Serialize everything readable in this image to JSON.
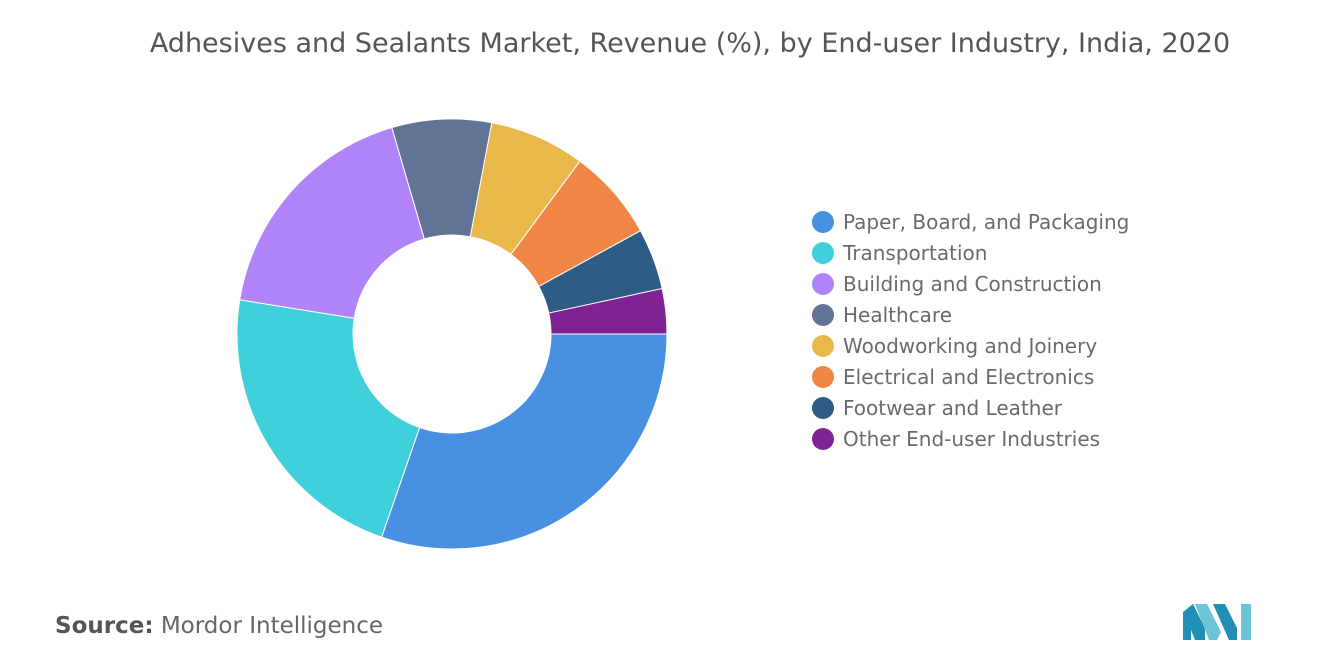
{
  "chart_data": {
    "type": "pie",
    "variant": "donut",
    "title": "Adhesives and Sealants Market, Revenue (%), by End-user Industry, India, 2020",
    "legend_position": "right",
    "series": [
      {
        "name": "Paper, Board, and Packaging",
        "value": 30.4,
        "color": "#4a90e2"
      },
      {
        "name": "Transportation",
        "value": 22.3,
        "color": "#40d0db"
      },
      {
        "name": "Building and Construction",
        "value": 18.0,
        "color": "#b083f8"
      },
      {
        "name": "Healthcare",
        "value": 7.5,
        "color": "#627495"
      },
      {
        "name": "Woodworking and Joinery",
        "value": 7.2,
        "color": "#e9b84a"
      },
      {
        "name": "Electrical and Electronics",
        "value": 6.9,
        "color": "#f08545"
      },
      {
        "name": "Footwear and Leather",
        "value": 4.6,
        "color": "#2e5c84"
      },
      {
        "name": "Other End-user Industries",
        "value": 3.4,
        "color": "#7f2394"
      }
    ]
  },
  "footer": {
    "source_label": "Source:",
    "source_value": "Mordor Intelligence"
  },
  "logo": {
    "icon": "mordor-intelligence-logo-icon",
    "colors": [
      "#1f8fb6",
      "#6dc3d8"
    ]
  }
}
